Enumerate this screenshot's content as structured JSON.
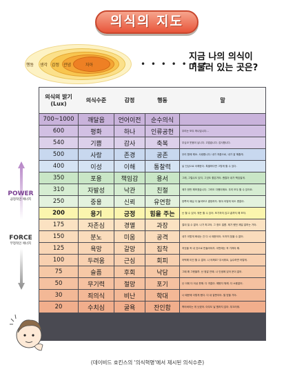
{
  "title": "의식의 지도",
  "rings": [
    "행동",
    "생각",
    "감정",
    "관념",
    "자아"
  ],
  "question": [
    "지금 나의 의식이",
    "머물러 있는 곳은?"
  ],
  "headers": {
    "level": "의식의 밝기\n(Lux)",
    "state": "의식수준",
    "emotion": "감정",
    "action": "행동",
    "words": "말"
  },
  "rows": [
    {
      "lux": "700~1000",
      "state": "깨달음",
      "emotion": "언어이전",
      "action": "순수의식",
      "desc": "",
      "color": "#c9b3db"
    },
    {
      "lux": "600",
      "state": "평화",
      "emotion": "하나",
      "action": "인류공헌",
      "desc": "우리는 모두 하나입니다...",
      "color": "#d2c0e3"
    },
    {
      "lux": "540",
      "state": "기쁨",
      "emotion": "감사",
      "action": "축복",
      "desc": "무심코 웃음이 납니다. 고맙습니다. 감사합니다.",
      "color": "#dcd0ea"
    },
    {
      "lux": "500",
      "state": "사랑",
      "emotion": "존경",
      "action": "공존",
      "desc": "우리 함께 해요. 사랑합니다. 내가 저줌으로, 내가 잘 해줄게.",
      "color": "#c8d8ef"
    },
    {
      "lux": "400",
      "state": "이성",
      "emotion": "이해",
      "action": "통찰력",
      "desc": "날 진심으로 이해한다. 특별하다면 그렇게 할 수 있다.",
      "color": "#d5e3f3"
    },
    {
      "lux": "350",
      "state": "포용",
      "emotion": "책임감",
      "action": "용서",
      "desc": "그래, 그럴수도 있지. 그것도 좋은거야. 괜찮아 내가 책임질게.",
      "color": "#c9e6c6"
    },
    {
      "lux": "310",
      "state": "자발성",
      "emotion": "낙관",
      "action": "친절",
      "desc": "제가 한번 해보겠습니다. 그러도 다행이에요. 우리 모두 할 수 있어요.",
      "color": "#d6edd2"
    },
    {
      "lux": "250",
      "state": "중용",
      "emotion": "신뢰",
      "action": "유연함",
      "desc": "양쪽의 얘길 다 들어보고 결정하자. 뭐야 어떻게 되도 괜찮아.",
      "color": "#e3f2de"
    },
    {
      "lux": "200",
      "state": "용기",
      "emotion": "긍정",
      "action": "힘을 주는",
      "desc": "난 할 수 있어. 뭐든 할 수 있어. 포기하지 않고 끝까지 해 보자.",
      "color": "#fbf5ae",
      "hl": true
    },
    {
      "lux": "175",
      "state": "자존심",
      "emotion": "경멸",
      "action": "과장",
      "desc": "절대 질 수 없어. 나가 최고야. 그 정도 일쯤. 제가 했던 제일 잘하는 거야.",
      "color": "#fbe2c2"
    },
    {
      "lux": "150",
      "state": "분노",
      "emotion": "미움",
      "action": "공격",
      "desc": "내가 이렇게 화내는 건 다 너 때문이야. 도저히 참을 수 없어.",
      "color": "#fadcbc"
    },
    {
      "lux": "125",
      "state": "욕망",
      "emotion": "갈망",
      "action": "집착",
      "desc": "저것을 꼭 내 것으로 만들어야지. 이번에는 꼭 가져야 해.",
      "color": "#f9d6b6"
    },
    {
      "lux": "100",
      "state": "두려움",
      "emotion": "근심",
      "action": "회피",
      "desc": "어떡해 이건 할 수 없어. 나 어쩌죠? 무서워요, 실수하면 어떻게.",
      "color": "#f8d0b0"
    },
    {
      "lux": "75",
      "state": "슬픔",
      "emotion": "후회",
      "action": "낙담",
      "desc": "그때 왜 그랬을까. 난 정말 안돼. 나 인생에 있어 운이 없어.",
      "color": "#f6c8a6"
    },
    {
      "lux": "50",
      "state": "무기력",
      "emotion": "절망",
      "action": "포기",
      "desc": "난 이제 더 이상 못해. 다 귀찮아. 해봤자 뭐해. 다 소용없어.",
      "color": "#f5c1a0"
    },
    {
      "lux": "30",
      "state": "죄의식",
      "emotion": "비난",
      "action": "학대",
      "desc": "나 때문에 이렇게 됐다. 다 내 잘못이야. 벌 받을 거야.",
      "color": "#f3b896"
    },
    {
      "lux": "20",
      "state": "수치심",
      "emotion": "굴욕",
      "action": "잔인함",
      "desc": "죽어버리는 게 낫겠어. 아무도 날 원하지 않아. 부끄러워.",
      "color": "#f1ae8c"
    }
  ],
  "power": {
    "label": "POWER",
    "sub": "긍정적인 에너지"
  },
  "force": {
    "label": "FORCE",
    "sub": "부정적인 에너지"
  },
  "caption": "(데이비드 호킨스의 '의식혁명'에서 제시된 의식수준)"
}
